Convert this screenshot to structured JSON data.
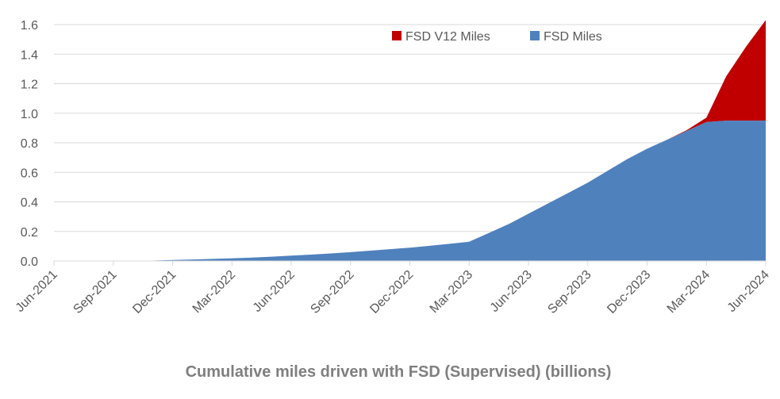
{
  "chart_data": {
    "type": "area",
    "stacked": true,
    "title": "Cumulative miles driven with FSD (Supervised) (billions)",
    "xlabel": "",
    "ylabel": "",
    "ylim": [
      0,
      1.6
    ],
    "yticks": [
      "0.0",
      "0.2",
      "0.4",
      "0.6",
      "0.8",
      "1.0",
      "1.2",
      "1.4",
      "1.6"
    ],
    "ytick_values": [
      0,
      0.2,
      0.4,
      0.6,
      0.8,
      1.0,
      1.2,
      1.4,
      1.6
    ],
    "xtick_labels": [
      "Jun-2021",
      "Sep-2021",
      "Dec-2021",
      "Mar-2022",
      "Jun-2022",
      "Sep-2022",
      "Dec-2022",
      "Mar-2023",
      "Jun-2023",
      "Sep-2023",
      "Dec-2023",
      "Mar-2024",
      "Jun-2024"
    ],
    "x_months": [
      "Jun-2021",
      "Jul-2021",
      "Aug-2021",
      "Sep-2021",
      "Oct-2021",
      "Nov-2021",
      "Dec-2021",
      "Jan-2022",
      "Feb-2022",
      "Mar-2022",
      "Apr-2022",
      "May-2022",
      "Jun-2022",
      "Jul-2022",
      "Aug-2022",
      "Sep-2022",
      "Oct-2022",
      "Nov-2022",
      "Dec-2022",
      "Jan-2023",
      "Feb-2023",
      "Mar-2023",
      "Apr-2023",
      "May-2023",
      "Jun-2023",
      "Jul-2023",
      "Aug-2023",
      "Sep-2023",
      "Oct-2023",
      "Nov-2023",
      "Dec-2023",
      "Jan-2024",
      "Feb-2024",
      "Mar-2024",
      "Apr-2024",
      "May-2024",
      "Jun-2024"
    ],
    "grid": true,
    "legend_position": "top-right",
    "series": [
      {
        "name": "FSD Miles",
        "color": "#4F81BD",
        "values": [
          0,
          0,
          0,
          0,
          0,
          0.003,
          0.007,
          0.01,
          0.014,
          0.018,
          0.023,
          0.029,
          0.036,
          0.043,
          0.051,
          0.06,
          0.07,
          0.08,
          0.09,
          0.103,
          0.116,
          0.13,
          0.19,
          0.25,
          0.32,
          0.39,
          0.46,
          0.53,
          0.61,
          0.69,
          0.76,
          0.82,
          0.88,
          0.94,
          0.95,
          0.95,
          0.95
        ]
      },
      {
        "name": "FSD V12 Miles",
        "color": "#C00000",
        "values": [
          0,
          0,
          0,
          0,
          0,
          0,
          0,
          0,
          0,
          0,
          0,
          0,
          0,
          0,
          0,
          0,
          0,
          0,
          0,
          0,
          0,
          0,
          0,
          0,
          0,
          0,
          0,
          0,
          0,
          0,
          0,
          0,
          0.005,
          0.03,
          0.3,
          0.5,
          0.68
        ]
      }
    ]
  }
}
